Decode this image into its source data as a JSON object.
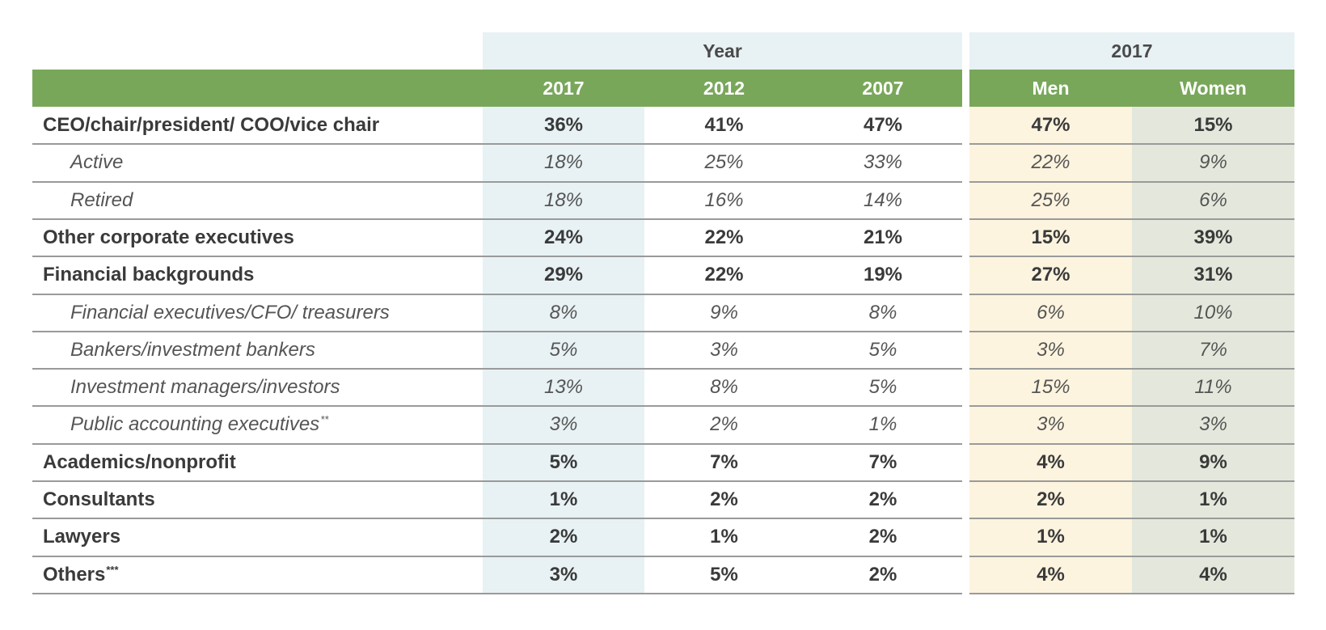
{
  "chart_data": {
    "type": "table",
    "column_groups": [
      {
        "label": "Year",
        "columns": [
          "2017",
          "2012",
          "2007"
        ]
      },
      {
        "label": "2017",
        "columns": [
          "Men",
          "Women"
        ]
      }
    ],
    "columns": [
      "2017",
      "2012",
      "2007",
      "Men",
      "Women"
    ],
    "rows": [
      {
        "label": "CEO/chair/president/ COO/vice chair",
        "note": "",
        "level": "main",
        "values": [
          "36%",
          "41%",
          "47%",
          "47%",
          "15%"
        ]
      },
      {
        "label": "Active",
        "note": "",
        "level": "sub",
        "values": [
          "18%",
          "25%",
          "33%",
          "22%",
          "9%"
        ]
      },
      {
        "label": "Retired",
        "note": "",
        "level": "sub",
        "values": [
          "18%",
          "16%",
          "14%",
          "25%",
          "6%"
        ]
      },
      {
        "label": "Other corporate executives",
        "note": "",
        "level": "main",
        "values": [
          "24%",
          "22%",
          "21%",
          "15%",
          "39%"
        ]
      },
      {
        "label": "Financial backgrounds",
        "note": "",
        "level": "main",
        "values": [
          "29%",
          "22%",
          "19%",
          "27%",
          "31%"
        ]
      },
      {
        "label": "Financial executives/CFO/ treasurers",
        "note": "",
        "level": "sub",
        "values": [
          "8%",
          "9%",
          "8%",
          "6%",
          "10%"
        ]
      },
      {
        "label": "Bankers/investment bankers",
        "note": "",
        "level": "sub",
        "values": [
          "5%",
          "3%",
          "5%",
          "3%",
          "7%"
        ]
      },
      {
        "label": "Investment managers/investors",
        "note": "",
        "level": "sub",
        "values": [
          "13%",
          "8%",
          "5%",
          "15%",
          "11%"
        ]
      },
      {
        "label": "Public accounting executives",
        "note": "**",
        "level": "sub",
        "values": [
          "3%",
          "2%",
          "1%",
          "3%",
          "3%"
        ]
      },
      {
        "label": "Academics/nonprofit",
        "note": "",
        "level": "main",
        "values": [
          "5%",
          "7%",
          "7%",
          "4%",
          "9%"
        ]
      },
      {
        "label": "Consultants",
        "note": "",
        "level": "main",
        "values": [
          "1%",
          "2%",
          "2%",
          "2%",
          "1%"
        ]
      },
      {
        "label": "Lawyers",
        "note": "",
        "level": "main",
        "values": [
          "2%",
          "1%",
          "2%",
          "1%",
          "1%"
        ]
      },
      {
        "label": "Others",
        "note": "***",
        "level": "main",
        "values": [
          "3%",
          "5%",
          "2%",
          "4%",
          "4%"
        ]
      }
    ],
    "colors": {
      "header_green": "#79a75a",
      "header_group_bg": "#e8f2f4",
      "year_2017_column_bg": "#e8f2f4",
      "men_column_bg": "#fdf4df",
      "women_column_bg": "#e4e8dc",
      "rule": "#9a9a9a"
    }
  }
}
